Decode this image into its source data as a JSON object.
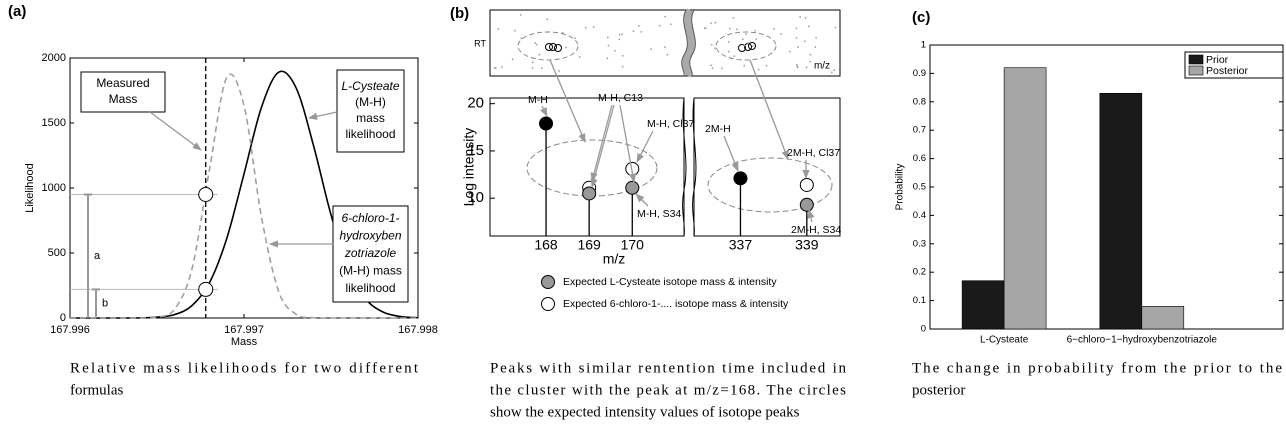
{
  "chart_data": [
    {
      "type": "line",
      "label": "(a)",
      "xlabel": "Mass",
      "ylabel": "Likelihood",
      "x": [
        167.996,
        167.9961,
        167.9962,
        167.9963,
        167.9964,
        167.9965,
        167.9966,
        167.9967,
        167.9968,
        167.9969,
        167.997,
        167.9971,
        167.9972,
        167.9973,
        167.9974,
        167.9975,
        167.9976,
        167.9977,
        167.9978,
        167.9979,
        167.998
      ],
      "series": [
        {
          "color": "#000000",
          "values": [
            0,
            0,
            0,
            0,
            1,
            6,
            26,
            94,
            267,
            608,
            1108,
            1619,
            1891,
            1769,
            1324,
            794,
            381,
            146,
            45,
            11,
            2
          ]
        },
        {
          "color": "#a0a0a0",
          "values": [
            0,
            0,
            0,
            0,
            0,
            6,
            66,
            372,
            1129,
            1848,
            1634,
            780,
            201,
            28,
            2,
            0,
            0,
            0,
            0,
            0,
            0
          ]
        }
      ],
      "xlim": [
        167.996,
        167.998
      ],
      "xticks": [
        167.996,
        167.997,
        167.998
      ],
      "ylim": [
        0,
        2000
      ],
      "yticks": [
        0,
        500,
        1000,
        1500,
        2000
      ],
      "measured_mass": 167.99678,
      "markers": [
        950,
        220
      ],
      "bracket_labels": [
        "a",
        "b"
      ],
      "annotations": [
        {
          "lines": [
            "Measured",
            "Mass"
          ]
        },
        {
          "lines": [
            "L-Cysteate",
            "(M-H)",
            "mass",
            "likelihood"
          ]
        },
        {
          "lines": [
            "6-chloro-1-",
            "hydroxyben",
            "zotriazole",
            "(M-H) mass",
            "likelihood"
          ]
        }
      ],
      "caption": [
        "Relative mass likelihoods for two different",
        "formulas"
      ]
    },
    {
      "type": "stem",
      "label": "(b)",
      "rt_label": "RT",
      "strip_xlabel": "m/z",
      "xlabel": "m/z",
      "ylabel": "Log intensity",
      "x": [
        168,
        169,
        170,
        337,
        339
      ],
      "xticks": [
        168,
        169,
        170,
        337,
        339
      ],
      "xlims": [
        [
          166.7,
          171.2
        ],
        [
          335.6,
          340.0
        ]
      ],
      "ylim": [
        6.0,
        20.6
      ],
      "yticks": [
        10,
        15,
        20
      ],
      "series": [
        {
          "color": "#000000",
          "values": [
            17.9,
            null,
            null,
            12.1,
            null
          ]
        },
        {
          "name": "Expected L-Cysteate isotope mass & intensity",
          "color": "#999999",
          "values": [
            null,
            10.5,
            11.1,
            null,
            9.3
          ]
        },
        {
          "name": "Expected 6-chloro-1-.... isotope mass & intensity",
          "color": "#ffffff",
          "values": [
            null,
            11.1,
            13.1,
            null,
            11.4
          ]
        }
      ],
      "annotations": [
        "M-H",
        "M-H, C13",
        "M-H, Cl37",
        "M-H, S34",
        "2M-H",
        "2M-H, Cl37",
        "2M-H, S34"
      ],
      "caption": [
        "Peaks with similar rentention time included in",
        "the cluster with the peak at m/z=168. The circles",
        "show the expected intensity values of isotope peaks"
      ]
    },
    {
      "type": "bar",
      "label": "(c)",
      "ylabel": "Probability",
      "categories": [
        "L-Cysteate",
        "6−chloro−1−hydroxybenzotriazole"
      ],
      "series": [
        {
          "name": "Prior",
          "color": "#1a1a1a",
          "values": [
            0.17,
            0.83
          ]
        },
        {
          "name": "Posterior",
          "color": "#a6a6a6",
          "values": [
            0.92,
            0.08
          ]
        }
      ],
      "ylim": [
        0,
        1
      ],
      "yticks": [
        0,
        0.1,
        0.2,
        0.3,
        0.4,
        0.5,
        0.6,
        0.7,
        0.8,
        0.9,
        1
      ],
      "legend": "upper right",
      "caption": [
        "The change in probability from the prior to the",
        "posterior"
      ]
    }
  ]
}
